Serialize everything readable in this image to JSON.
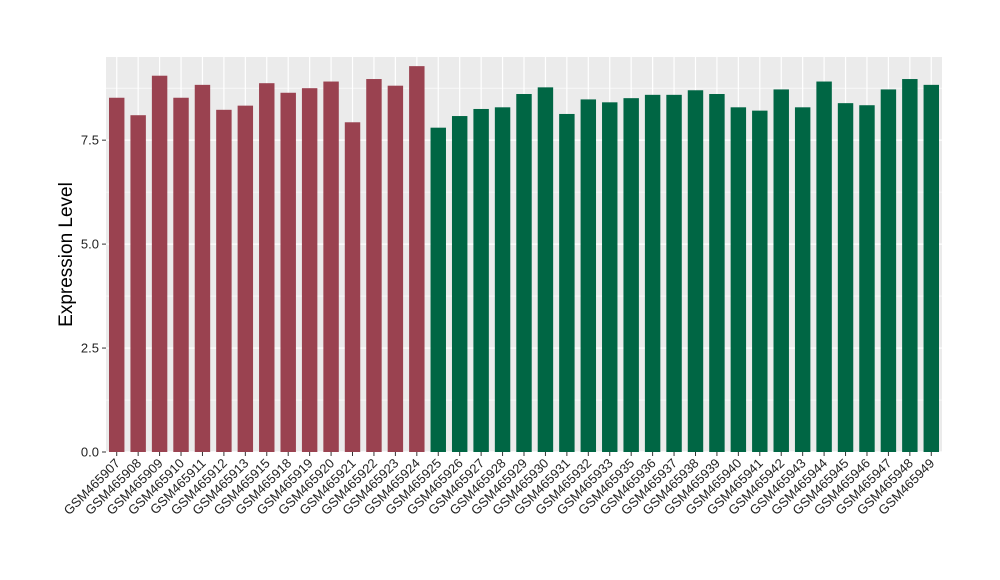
{
  "chart_data": {
    "type": "bar",
    "title": "",
    "xlabel": "",
    "ylabel": "Expression Level",
    "ylim": [
      0,
      9.5
    ],
    "yticks": [
      0.0,
      2.5,
      5.0,
      7.5
    ],
    "ytick_labels": [
      "0.0",
      "2.5",
      "5.0",
      "7.5"
    ],
    "grid": true,
    "legend": "none",
    "colors": {
      "panel_background": "#EBEBEB",
      "grid": "#FFFFFF",
      "group_1": "#9A4250",
      "group_2": "#006644"
    },
    "categories": [
      "GSM465907",
      "GSM465908",
      "GSM465909",
      "GSM465910",
      "GSM465911",
      "GSM465912",
      "GSM465913",
      "GSM465915",
      "GSM465918",
      "GSM465919",
      "GSM465920",
      "GSM465921",
      "GSM465922",
      "GSM465923",
      "GSM465924",
      "GSM465925",
      "GSM465926",
      "GSM465927",
      "GSM465928",
      "GSM465929",
      "GSM465930",
      "GSM465931",
      "GSM465932",
      "GSM465933",
      "GSM465935",
      "GSM465936",
      "GSM465937",
      "GSM465938",
      "GSM465939",
      "GSM465940",
      "GSM465941",
      "GSM465942",
      "GSM465943",
      "GSM465944",
      "GSM465945",
      "GSM465946",
      "GSM465947",
      "GSM465948",
      "GSM465949"
    ],
    "values": [
      8.52,
      8.1,
      9.05,
      8.52,
      8.83,
      8.23,
      8.33,
      8.87,
      8.64,
      8.75,
      8.91,
      7.93,
      8.97,
      8.81,
      9.28,
      7.8,
      8.08,
      8.25,
      8.29,
      8.61,
      8.77,
      8.13,
      8.48,
      8.41,
      8.51,
      8.59,
      8.59,
      8.7,
      8.61,
      8.29,
      8.21,
      8.72,
      8.29,
      8.91,
      8.39,
      8.34,
      8.72,
      8.97,
      8.83
    ],
    "bar_group": [
      1,
      1,
      1,
      1,
      1,
      1,
      1,
      1,
      1,
      1,
      1,
      1,
      1,
      1,
      1,
      2,
      2,
      2,
      2,
      2,
      2,
      2,
      2,
      2,
      2,
      2,
      2,
      2,
      2,
      2,
      2,
      2,
      2,
      2,
      2,
      2,
      2,
      2,
      2
    ]
  }
}
